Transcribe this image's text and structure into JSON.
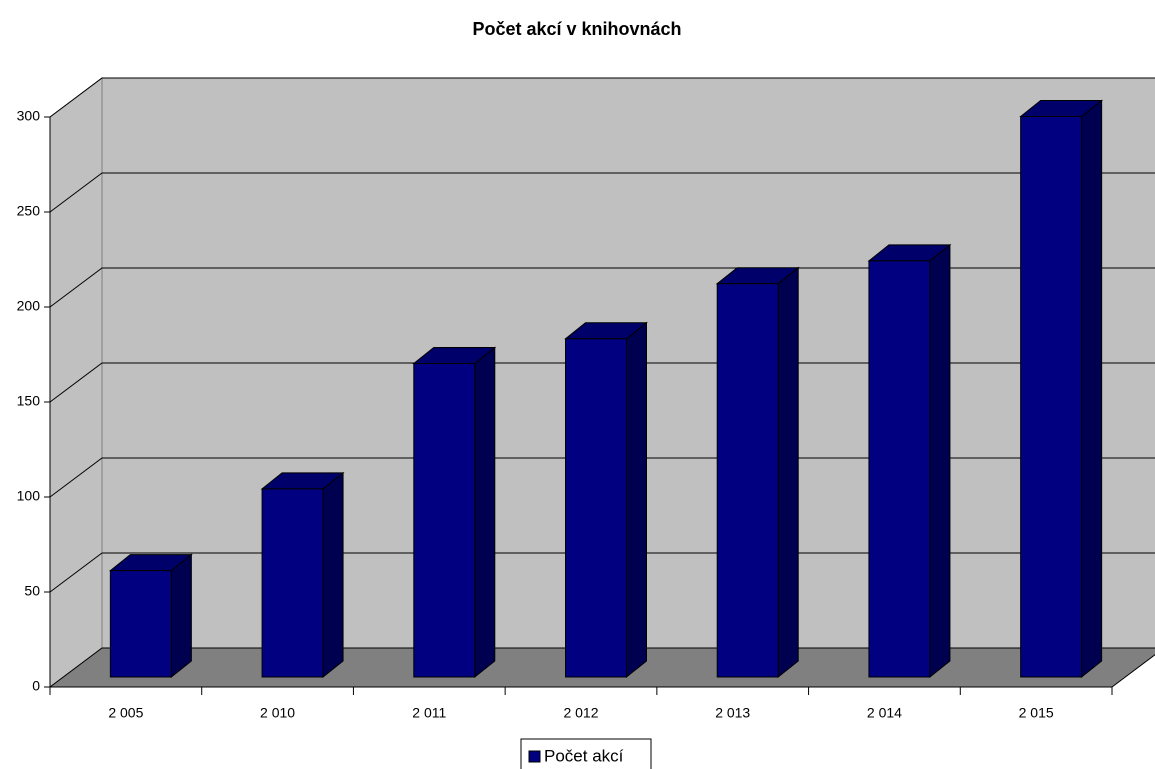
{
  "chart_data": {
    "type": "bar3d",
    "title": "Počet akcí v knihovnách",
    "categories": [
      "2 005",
      "2 010",
      "2 011",
      "2 012",
      "2 013",
      "2 014",
      "2 015"
    ],
    "series": [
      {
        "name": "Počet akcí",
        "color": "#000080",
        "values": [
          56,
          99,
          165,
          178,
          207,
          219,
          295
        ]
      }
    ],
    "ylim": [
      0,
      300
    ],
    "yticks": [
      0,
      50,
      100,
      150,
      200,
      250,
      300
    ],
    "grid": true,
    "legend": "bottom"
  }
}
